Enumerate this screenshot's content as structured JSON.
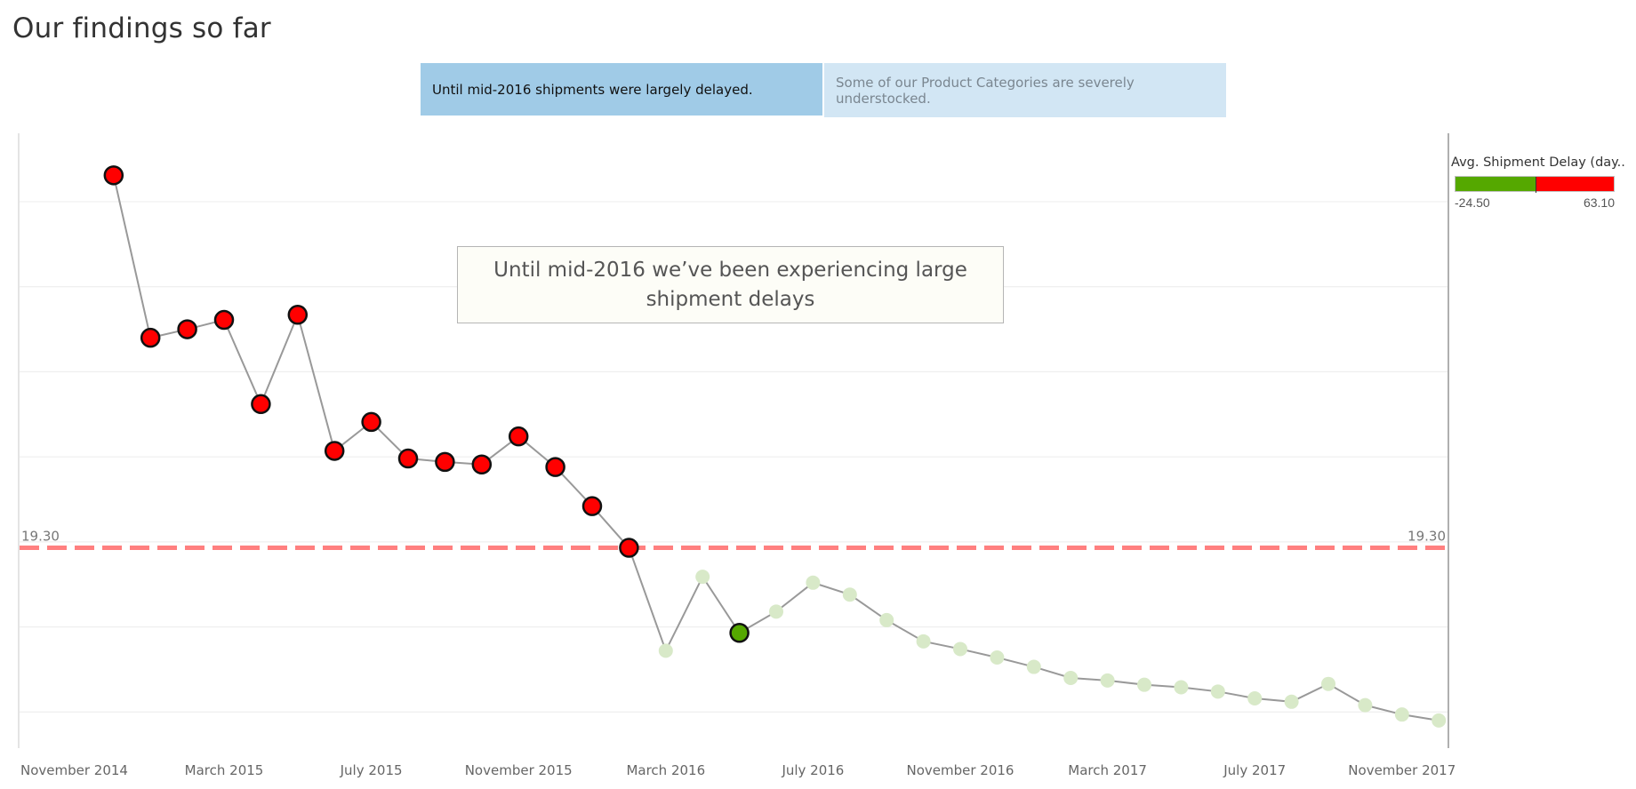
{
  "page": {
    "title": "Our findings so far"
  },
  "tabs": [
    {
      "label": "Until mid-2016 shipments were largely delayed.",
      "active": true
    },
    {
      "label": "Some of our Product Categories are severely understocked.",
      "active": false
    }
  ],
  "annotation": {
    "text": "Until mid-2016 we’ve been experiencing large shipment delays"
  },
  "legend": {
    "title": "Avg. Shipment Delay (day..",
    "min_label": "-24.50",
    "max_label": "63.10",
    "colors": {
      "low": "#55a800",
      "high": "#ff0000"
    }
  },
  "chart_data": {
    "type": "line",
    "x_tick_labels": [
      "November 2014",
      "March 2015",
      "July 2015",
      "November 2015",
      "March 2016",
      "July 2016",
      "November 2016",
      "March 2017",
      "July 2017",
      "November 2017"
    ],
    "x": [
      "2014-12",
      "2015-01",
      "2015-02",
      "2015-03",
      "2015-04",
      "2015-05",
      "2015-06",
      "2015-07",
      "2015-08",
      "2015-09",
      "2015-10",
      "2015-11",
      "2015-12",
      "2016-01",
      "2016-02",
      "2016-03",
      "2016-04",
      "2016-05",
      "2016-06",
      "2016-07",
      "2016-08",
      "2016-09",
      "2016-10",
      "2016-11",
      "2016-12",
      "2017-01",
      "2017-02",
      "2017-03",
      "2017-04",
      "2017-05",
      "2017-06",
      "2017-07",
      "2017-08",
      "2017-09",
      "2017-10",
      "2017-11",
      "2017-12"
    ],
    "series": [
      {
        "values": [
          63.1,
          44.0,
          45.0,
          46.1,
          36.2,
          46.7,
          30.7,
          34.1,
          29.8,
          29.4,
          29.1,
          32.4,
          28.8,
          24.2,
          19.3,
          7.2,
          15.9,
          9.3,
          11.8,
          15.2,
          13.8,
          10.8,
          8.3,
          7.4,
          6.4,
          5.3,
          4.0,
          3.7,
          3.2,
          2.9,
          2.4,
          1.6,
          1.2,
          3.3,
          0.8,
          -0.3,
          -1.0
        ]
      }
    ],
    "series_colors": {
      "above_reference": "#ff0000",
      "highlighted_below": "#55a800",
      "below_reference": "#d8e9c8",
      "line": "#999999"
    },
    "reference_line": {
      "value": 19.3,
      "label": "19.30",
      "color": "#ff7f7f",
      "style": "dashed"
    },
    "ylim": [
      -3,
      67
    ],
    "y_gridlines": [
      0,
      10,
      20,
      30,
      40,
      50,
      60
    ],
    "y_axis_labels_shown": false,
    "grid": true,
    "legend_position": "right"
  }
}
